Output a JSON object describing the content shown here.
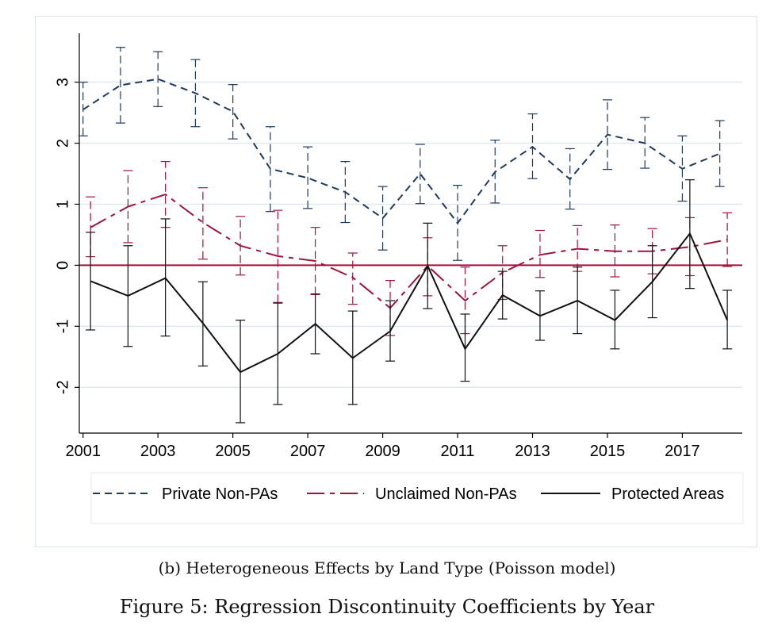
{
  "subcaption": "(b) Heterogeneous Effects by Land Type (Poisson model)",
  "caption": "Figure 5: Regression Discontinuity Coefficients by Year",
  "chart_data": {
    "type": "line",
    "title": "",
    "xlabel": "",
    "ylabel": "",
    "x_ticks": [
      "2001",
      "2003",
      "2005",
      "2007",
      "2009",
      "2011",
      "2013",
      "2015",
      "2017"
    ],
    "y_ticks": [
      "-2",
      "-1",
      "0",
      "1",
      "2",
      "3"
    ],
    "xlim": [
      2000.9,
      2018.6
    ],
    "ylim": [
      -2.75,
      3.8
    ],
    "grid": true,
    "reference_line": 0,
    "reference_line_color": "#a0143a",
    "legend_placement": "bottom",
    "series": [
      {
        "name": "Private Non-PAs",
        "color": "#1f3a5f",
        "style": "short-dash",
        "x": [
          2001.0,
          2002.0,
          2003.0,
          2004.0,
          2005.0,
          2006.0,
          2007.0,
          2008.0,
          2009.0,
          2010.0,
          2011.0,
          2012.0,
          2013.0,
          2014.0,
          2015.0,
          2016.0,
          2017.0,
          2018.0
        ],
        "y": [
          2.55,
          2.95,
          3.05,
          2.82,
          2.52,
          1.58,
          1.43,
          1.2,
          0.77,
          1.5,
          0.69,
          1.53,
          1.94,
          1.41,
          2.14,
          2.0,
          1.58,
          1.83
        ],
        "lower": [
          2.12,
          2.33,
          2.6,
          2.27,
          2.07,
          0.88,
          0.93,
          0.7,
          0.25,
          1.01,
          0.08,
          1.02,
          1.42,
          0.92,
          1.57,
          1.59,
          1.05,
          1.29
        ],
        "upper": [
          3.0,
          3.57,
          3.5,
          3.37,
          2.96,
          2.27,
          1.94,
          1.7,
          1.29,
          1.98,
          1.31,
          2.05,
          2.48,
          1.91,
          2.71,
          2.42,
          2.12,
          2.37
        ]
      },
      {
        "name": "Unclaimed Non-PAs",
        "color": "#a0143a",
        "style": "long-dash",
        "x": [
          2001.2,
          2002.2,
          2003.2,
          2004.2,
          2005.2,
          2006.2,
          2007.2,
          2008.2,
          2009.2,
          2010.2,
          2011.2,
          2012.2,
          2013.2,
          2014.2,
          2015.2,
          2016.2,
          2017.2,
          2018.2
        ],
        "y": [
          0.62,
          0.96,
          1.16,
          0.7,
          0.32,
          0.15,
          0.07,
          -0.2,
          -0.7,
          -0.01,
          -0.58,
          -0.12,
          0.17,
          0.27,
          0.23,
          0.23,
          0.3,
          0.42
        ],
        "lower": [
          0.14,
          0.37,
          0.62,
          0.1,
          -0.16,
          -0.61,
          -0.48,
          -0.64,
          -1.15,
          -0.5,
          -1.12,
          -0.56,
          -0.2,
          -0.1,
          -0.19,
          -0.14,
          -0.17,
          -0.02
        ],
        "upper": [
          1.12,
          1.55,
          1.7,
          1.27,
          0.8,
          0.9,
          0.62,
          0.2,
          -0.25,
          0.45,
          -0.03,
          0.32,
          0.57,
          0.65,
          0.66,
          0.6,
          0.78,
          0.86
        ]
      },
      {
        "name": "Protected Areas",
        "color": "#111111",
        "style": "solid",
        "x": [
          2001.2,
          2002.2,
          2003.2,
          2004.2,
          2005.2,
          2006.2,
          2007.2,
          2008.2,
          2009.2,
          2010.2,
          2011.2,
          2012.2,
          2013.2,
          2014.2,
          2015.2,
          2016.2,
          2017.2,
          2018.2
        ],
        "y": [
          -0.26,
          -0.5,
          -0.21,
          -0.95,
          -1.75,
          -1.45,
          -0.96,
          -1.52,
          -1.08,
          -0.01,
          -1.37,
          -0.49,
          -0.83,
          -0.58,
          -0.9,
          -0.27,
          0.52,
          -0.9
        ],
        "lower": [
          -1.06,
          -1.33,
          -1.16,
          -1.65,
          -2.58,
          -2.28,
          -1.45,
          -2.28,
          -1.57,
          -0.71,
          -1.9,
          -0.88,
          -1.23,
          -1.12,
          -1.37,
          -0.86,
          -0.38,
          -1.37
        ],
        "upper": [
          0.54,
          0.32,
          0.76,
          -0.27,
          -0.9,
          -0.62,
          -0.47,
          -0.75,
          -0.58,
          0.69,
          -0.8,
          -0.1,
          -0.42,
          -0.03,
          -0.41,
          0.32,
          1.4,
          -0.41
        ]
      }
    ]
  }
}
